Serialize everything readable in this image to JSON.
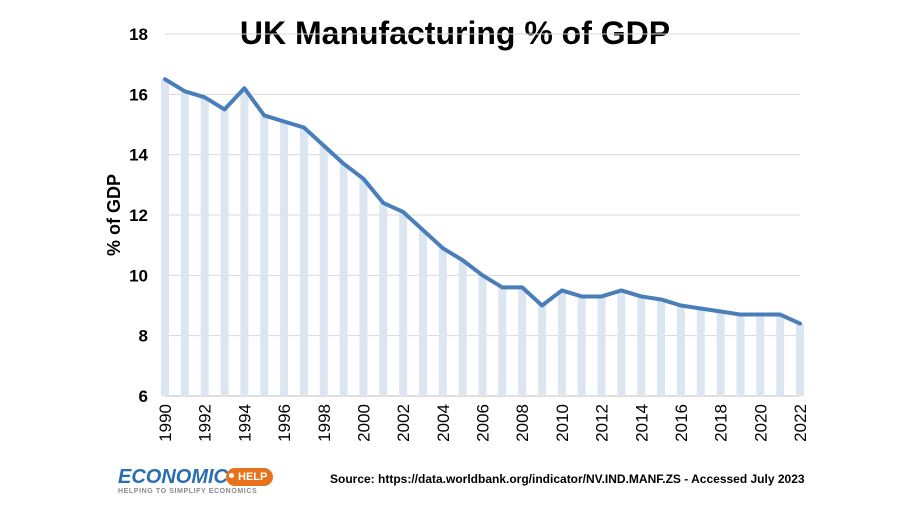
{
  "chart_data": {
    "type": "line",
    "title": "UK Manufacturing % of GDP",
    "xlabel": "",
    "ylabel": "% of GDP",
    "ylim": [
      6,
      18
    ],
    "yticks": [
      6,
      8,
      10,
      12,
      14,
      16,
      18
    ],
    "xticks": [
      1990,
      1992,
      1994,
      1996,
      1998,
      2000,
      2002,
      2004,
      2006,
      2008,
      2010,
      2012,
      2014,
      2016,
      2018,
      2020,
      2022
    ],
    "x": [
      1990,
      1991,
      1992,
      1993,
      1994,
      1995,
      1996,
      1997,
      1998,
      1999,
      2000,
      2001,
      2002,
      2003,
      2004,
      2005,
      2006,
      2007,
      2008,
      2009,
      2010,
      2011,
      2012,
      2013,
      2014,
      2015,
      2016,
      2017,
      2018,
      2019,
      2020,
      2021,
      2022
    ],
    "series": [
      {
        "name": "UK Manufacturing % of GDP",
        "values": [
          16.5,
          16.1,
          15.9,
          15.5,
          16.2,
          15.3,
          15.1,
          14.9,
          14.3,
          13.7,
          13.2,
          12.4,
          12.1,
          11.5,
          10.9,
          10.5,
          10.0,
          9.6,
          9.6,
          9.0,
          9.5,
          9.3,
          9.3,
          9.5,
          9.3,
          9.2,
          9.0,
          8.9,
          8.8,
          8.7,
          8.7,
          8.7,
          8.4
        ]
      }
    ],
    "grid": true,
    "line_color": "#4a7ebb",
    "bar_color": "#dce6f1",
    "grid_color": "#d9d9d9"
  },
  "source": "Source: https://data.worldbank.org/indicator/NV.IND.MANF.ZS - Accessed July 2023",
  "logo": {
    "word": "ECONOMICS",
    "badge": "HELP",
    "tagline": "HELPING TO SIMPLIFY ECONOMICS"
  }
}
